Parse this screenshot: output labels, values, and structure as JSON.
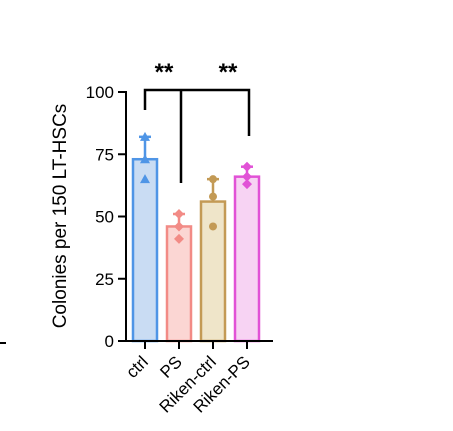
{
  "chart_data": {
    "type": "bar",
    "title": "",
    "xlabel": "",
    "ylabel": "Colonies per 150 LT-HSCs",
    "ylim": [
      0,
      100
    ],
    "yticks": [
      0,
      25,
      50,
      75,
      100
    ],
    "categories": [
      "ctrl",
      "PS",
      "Riken-ctrl",
      "Riken-PS"
    ],
    "values": [
      73,
      46,
      56,
      66
    ],
    "error_upper": [
      82,
      51,
      65,
      70
    ],
    "points": [
      [
        82,
        73,
        65
      ],
      [
        51,
        46,
        41
      ],
      [
        65,
        58,
        46
      ],
      [
        70,
        66,
        63
      ]
    ],
    "point_markers": [
      "triangle",
      "diamond",
      "circle",
      "diamond"
    ],
    "bar_colors": {
      "fill": [
        "#c9dcf3",
        "#fbd6d3",
        "#efe5c9",
        "#f7d3f3"
      ],
      "stroke": [
        "#4f95e6",
        "#f28b86",
        "#c39a55",
        "#e152d6"
      ]
    },
    "significance": [
      {
        "from": 0,
        "to": 1,
        "label": "**"
      },
      {
        "from": 0,
        "to": 3,
        "label": "**"
      }
    ],
    "grid": false,
    "legend": "none"
  }
}
